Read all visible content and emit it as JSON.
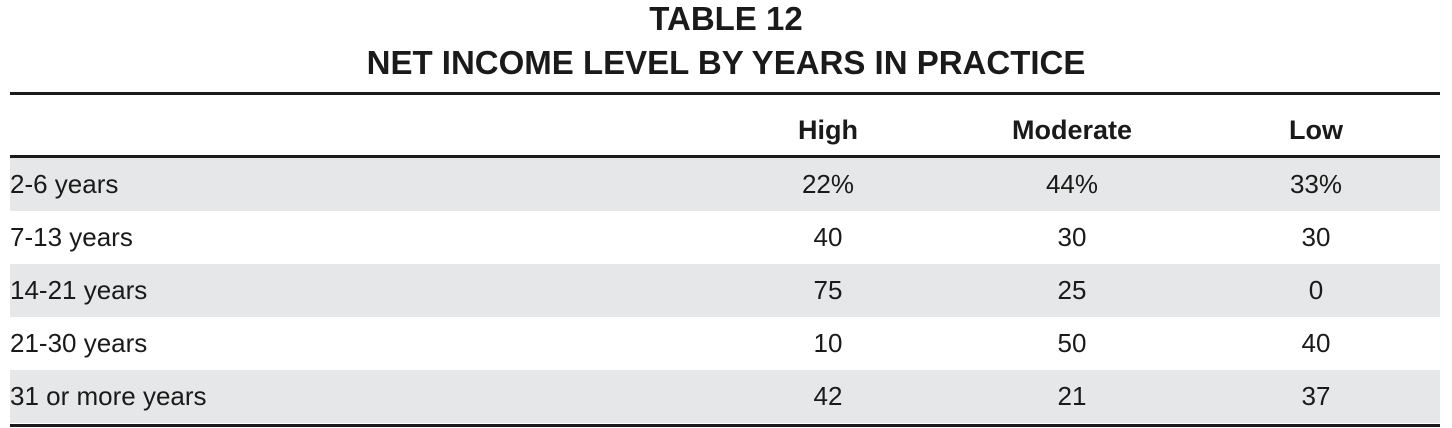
{
  "title": {
    "line1": "TABLE 12",
    "line2": "NET INCOME LEVEL BY YEARS IN PRACTICE"
  },
  "table": {
    "columns": [
      "",
      "High",
      "Moderate",
      "Low"
    ],
    "rows": [
      {
        "label": "2-6 years",
        "high": "22%",
        "moderate": "44%",
        "low": "33%"
      },
      {
        "label": "7-13 years",
        "high": "40",
        "moderate": "30",
        "low": "30"
      },
      {
        "label": "14-21 years",
        "high": "75",
        "moderate": "25",
        "low": "0"
      },
      {
        "label": "21-30 years",
        "high": "10",
        "moderate": "50",
        "low": "40"
      },
      {
        "label": "31 or more years",
        "high": "42",
        "moderate": "21",
        "low": "37"
      }
    ]
  },
  "colors": {
    "text": "#1a1a1a",
    "row_shade": "#e6e7e8",
    "rule": "#1a1a1a"
  }
}
